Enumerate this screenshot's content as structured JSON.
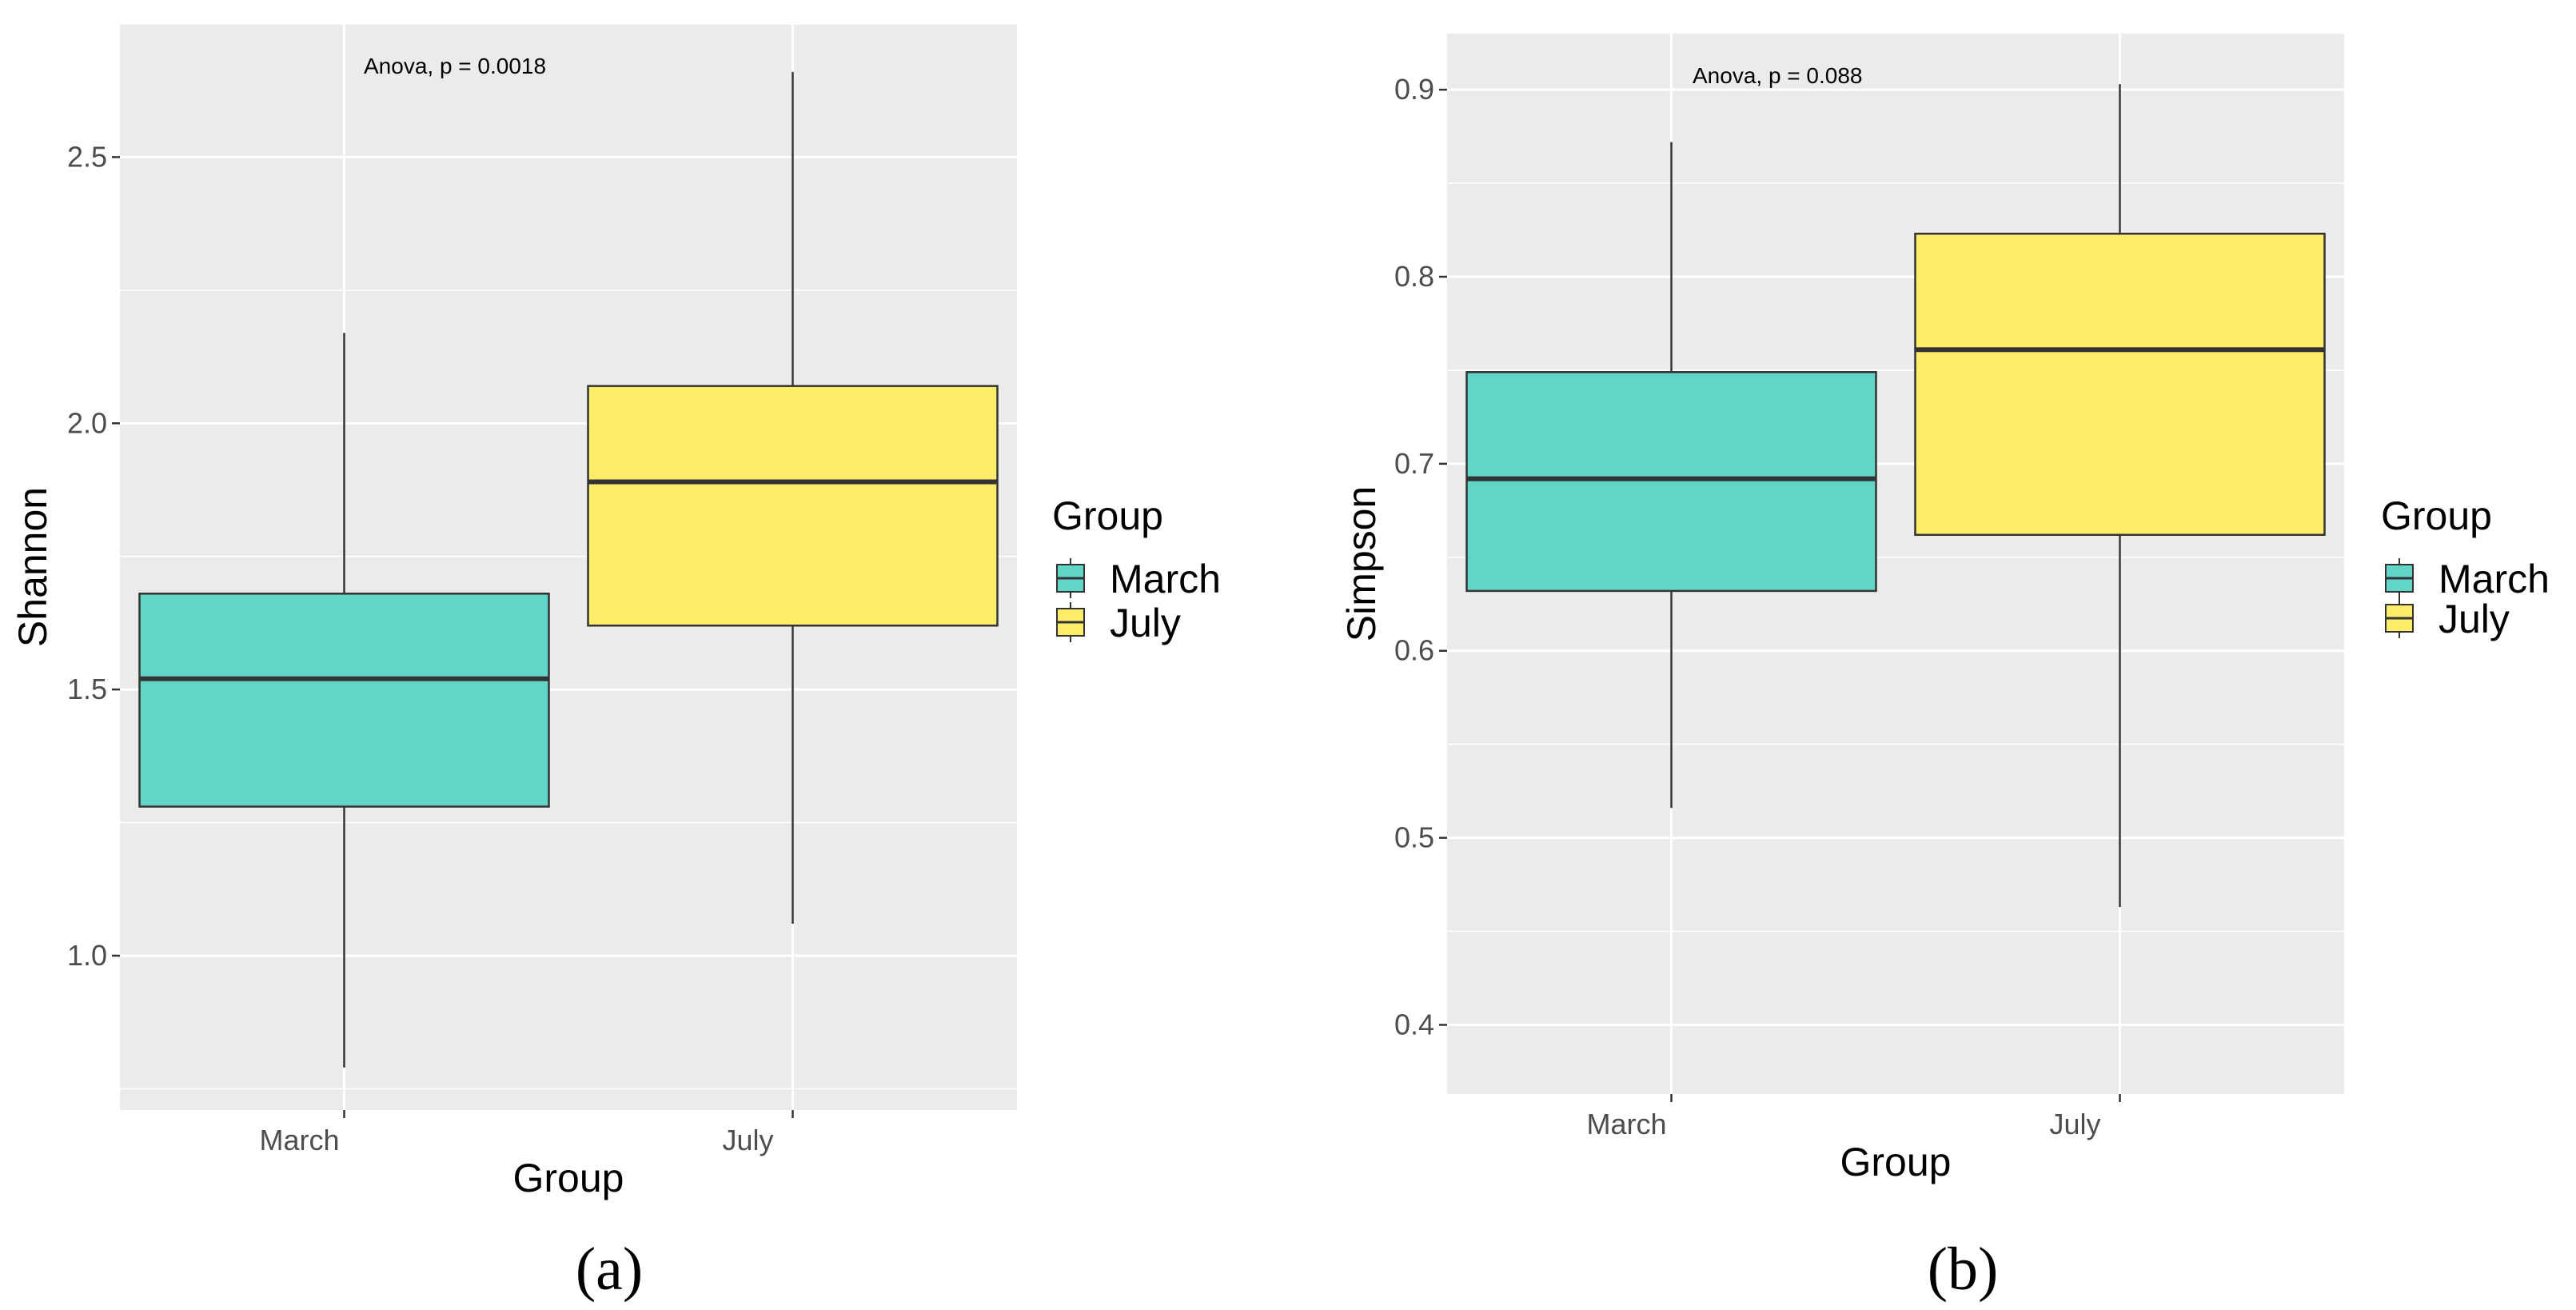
{
  "colors": {
    "march": "#61d5c8",
    "july": "#ffec68",
    "panel_bg": "#ebebeb",
    "grid": "#ffffff",
    "stroke": "#333333"
  },
  "chart_data": [
    {
      "type": "boxplot",
      "panel_label": "(a)",
      "xlabel": "Group",
      "ylabel": "Shannon",
      "ylim": [
        0.71,
        2.75
      ],
      "yticks": [
        1.0,
        1.5,
        2.0,
        2.5
      ],
      "ytick_labels": [
        "1.0",
        "1.5",
        "2.0",
        "2.5"
      ],
      "categories": [
        "March",
        "July"
      ],
      "annotation": "Anova, p = 0.0018",
      "legend": {
        "title": "Group",
        "entries": [
          "March",
          "July"
        ]
      },
      "boxes": [
        {
          "group": "March",
          "min": 0.79,
          "q1": 1.28,
          "median": 1.52,
          "q3": 1.68,
          "max": 2.17
        },
        {
          "group": "July",
          "min": 1.06,
          "q1": 1.62,
          "median": 1.89,
          "q3": 2.07,
          "max": 2.66
        }
      ]
    },
    {
      "type": "boxplot",
      "panel_label": "(b)",
      "xlabel": "Group",
      "ylabel": "Simpson",
      "ylim": [
        0.363,
        0.93
      ],
      "yticks": [
        0.4,
        0.5,
        0.6,
        0.7,
        0.8,
        0.9
      ],
      "ytick_labels": [
        "0.4",
        "0.5",
        "0.6",
        "0.7",
        "0.8",
        "0.9"
      ],
      "categories": [
        "March",
        "July"
      ],
      "annotation": "Anova, p = 0.088",
      "legend": {
        "title": "Group",
        "entries": [
          "March",
          "July"
        ]
      },
      "boxes": [
        {
          "group": "March",
          "min": 0.516,
          "q1": 0.632,
          "median": 0.692,
          "q3": 0.749,
          "max": 0.872
        },
        {
          "group": "July",
          "min": 0.463,
          "q1": 0.662,
          "median": 0.761,
          "q3": 0.823,
          "max": 0.903
        }
      ]
    }
  ]
}
